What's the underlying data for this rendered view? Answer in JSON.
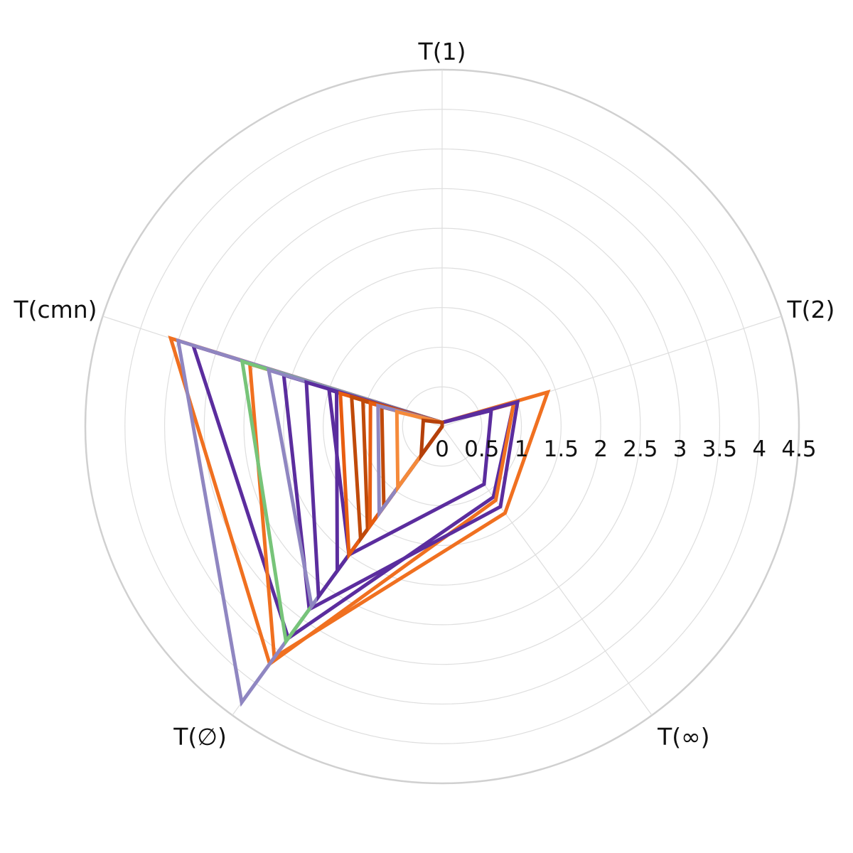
{
  "chart_data": {
    "type": "radar",
    "axes": [
      "T(1)",
      "T(2)",
      "T(∞)",
      "T(∅)",
      "T(cmn)"
    ],
    "radial_ticks": [
      "0",
      "0.5",
      "1",
      "1.5",
      "2",
      "2.5",
      "3",
      "3.5",
      "4",
      "4.5"
    ],
    "rlim": [
      0,
      4.5
    ],
    "grid": true,
    "legend": "none",
    "series": [
      {
        "values": [
          0.05,
          0.95,
          1.1,
          3.3,
          3.3
        ],
        "color": "#5b2d9e"
      },
      {
        "values": [
          0.05,
          0.95,
          1.15,
          3.7,
          3.6
        ],
        "color": "#f07020"
      },
      {
        "values": [
          0.05,
          1.4,
          1.35,
          3.6,
          2.55
        ],
        "color": "#f07020"
      },
      {
        "values": [
          0.05,
          1.0,
          1.25,
          2.85,
          2.1
        ],
        "color": "#5b2d9e"
      },
      {
        "values": [
          0.05,
          0.0,
          0.0,
          4.3,
          3.5
        ],
        "color": "#8f86c1"
      },
      {
        "values": [
          0.05,
          0.0,
          0.0,
          3.35,
          2.65
        ],
        "color": "#77c479"
      },
      {
        "values": [
          0.05,
          0.0,
          0.0,
          2.8,
          2.3
        ],
        "color": "#8f86c1"
      },
      {
        "values": [
          0.05,
          0.0,
          0.0,
          2.65,
          1.8
        ],
        "color": "#5b2d9e"
      },
      {
        "values": [
          0.05,
          0.0,
          0.0,
          2.25,
          1.4
        ],
        "color": "#5b2d9e"
      },
      {
        "values": [
          0.05,
          0.65,
          0.9,
          2.0,
          1.5
        ],
        "color": "#5b2d9e"
      },
      {
        "values": [
          0.05,
          0.0,
          0.0,
          2.0,
          1.35
        ],
        "color": "#e85d10"
      },
      {
        "values": [
          0.05,
          0.0,
          0.0,
          1.75,
          1.2
        ],
        "color": "#c04a0a"
      },
      {
        "values": [
          0.05,
          0.0,
          0.0,
          1.6,
          1.05
        ],
        "color": "#c04a0a"
      },
      {
        "values": [
          0.05,
          0.0,
          0.0,
          1.55,
          0.95
        ],
        "color": "#e85d10"
      },
      {
        "values": [
          0.05,
          0.0,
          0.0,
          1.25,
          0.8
        ],
        "color": "#c04a0a"
      },
      {
        "values": [
          0.05,
          0.0,
          0.0,
          1.35,
          0.85
        ],
        "color": "#8f86c1"
      },
      {
        "values": [
          0.05,
          0.0,
          0.0,
          0.95,
          0.6
        ],
        "color": "#f58a3a"
      },
      {
        "values": [
          0.05,
          0.0,
          0.0,
          0.45,
          0.25
        ],
        "color": "#b5400a"
      }
    ]
  }
}
